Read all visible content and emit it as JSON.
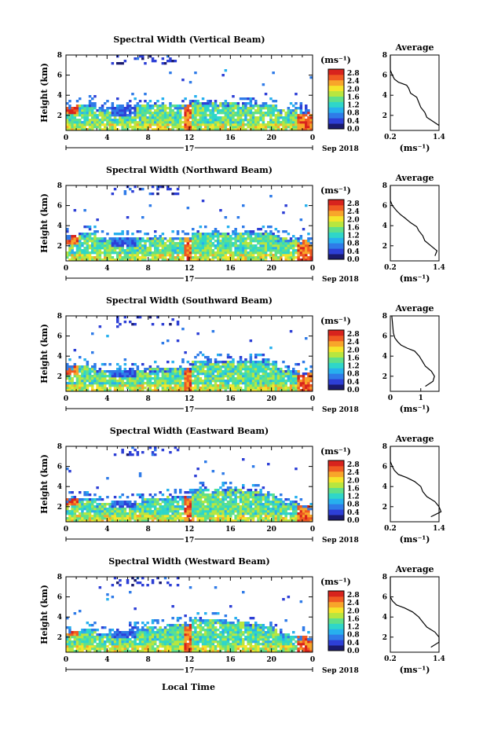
{
  "x_axis_label": "Local Time",
  "date_label": "Sep 2018",
  "day_label": "17",
  "x_ticks": [
    "0",
    "4",
    "8",
    "12",
    "16",
    "20",
    "0"
  ],
  "y_axis_label": "Height (km)",
  "y_ticks": [
    "2",
    "4",
    "6",
    "8"
  ],
  "unit_label": "(ms⁻¹)",
  "average_title": "Average",
  "colorbar_ticks": [
    "0.0",
    "0.4",
    "0.8",
    "1.2",
    "1.6",
    "2.0",
    "2.4",
    "2.8"
  ],
  "colors": {
    "colormap": [
      "#1a1a6e",
      "#2d3fd6",
      "#2f7be8",
      "#27b0ee",
      "#2fd6c9",
      "#5fe08a",
      "#b8e63f",
      "#f5e52a",
      "#f8a62a",
      "#f05a22",
      "#d8231d"
    ],
    "white": "#ffffff"
  },
  "chart_data": [
    {
      "type": "heatmap",
      "title": "Spectral Width (Vertical Beam)",
      "xlabel": "",
      "ylabel": "Height (km)",
      "xlim": [
        0,
        24
      ],
      "ylim": [
        0.5,
        8
      ],
      "colorbar": {
        "label": "(ms⁻¹)",
        "range": [
          0,
          3
        ]
      },
      "profile": {
        "type": "line",
        "title": "Average",
        "xticks": [
          "0.2",
          "1.4"
        ],
        "xlim": [
          0.2,
          1.4
        ],
        "ylim": [
          0.5,
          8
        ],
        "xlabel": "(ms⁻¹)",
        "points": [
          [
            1.4,
            1.0
          ],
          [
            1.25,
            1.4
          ],
          [
            1.1,
            1.8
          ],
          [
            1.05,
            2.3
          ],
          [
            0.95,
            2.8
          ],
          [
            0.9,
            3.3
          ],
          [
            0.85,
            3.8
          ],
          [
            0.7,
            4.2
          ],
          [
            0.65,
            4.7
          ],
          [
            0.6,
            5.0
          ],
          [
            0.4,
            5.3
          ],
          [
            0.3,
            5.6
          ],
          [
            0.25,
            6.0
          ],
          [
            0.2,
            6.5
          ],
          [
            0.2,
            8.0
          ]
        ]
      }
    },
    {
      "type": "heatmap",
      "title": "Spectral Width (Northward Beam)",
      "xlabel": "",
      "ylabel": "Height (km)",
      "xlim": [
        0,
        24
      ],
      "ylim": [
        0.5,
        8
      ],
      "colorbar": {
        "label": "(ms⁻¹)",
        "range": [
          0,
          3
        ]
      },
      "profile": {
        "type": "line",
        "title": "Average",
        "xticks": [
          "0.2",
          "1.4"
        ],
        "xlim": [
          0.2,
          1.4
        ],
        "ylim": [
          0.5,
          8
        ],
        "xlabel": "(ms⁻¹)",
        "points": [
          [
            1.3,
            1.0
          ],
          [
            1.35,
            1.5
          ],
          [
            1.2,
            2.0
          ],
          [
            1.05,
            2.5
          ],
          [
            1.0,
            3.0
          ],
          [
            0.9,
            3.5
          ],
          [
            0.85,
            3.9
          ],
          [
            0.7,
            4.3
          ],
          [
            0.55,
            4.8
          ],
          [
            0.45,
            5.1
          ],
          [
            0.35,
            5.5
          ],
          [
            0.25,
            6.0
          ],
          [
            0.2,
            6.5
          ],
          [
            0.2,
            8.0
          ]
        ]
      }
    },
    {
      "type": "heatmap",
      "title": "Spectral Width (Southward Beam)",
      "xlabel": "",
      "ylabel": "Height (km)",
      "xlim": [
        0,
        24
      ],
      "ylim": [
        0.5,
        8
      ],
      "colorbar": {
        "label": "(ms⁻¹)",
        "range": [
          0,
          3
        ]
      },
      "profile": {
        "type": "line",
        "title": "Average",
        "xticks": [
          "0",
          "1"
        ],
        "xlim": [
          0,
          1.6
        ],
        "ylim": [
          0.5,
          8
        ],
        "xlabel": "(ms⁻¹)",
        "points": [
          [
            1.15,
            1.0
          ],
          [
            1.4,
            1.5
          ],
          [
            1.45,
            2.0
          ],
          [
            1.35,
            2.5
          ],
          [
            1.15,
            3.0
          ],
          [
            1.05,
            3.5
          ],
          [
            0.95,
            4.0
          ],
          [
            0.8,
            4.5
          ],
          [
            0.55,
            4.8
          ],
          [
            0.35,
            5.1
          ],
          [
            0.25,
            5.4
          ],
          [
            0.15,
            5.8
          ],
          [
            0.1,
            6.3
          ],
          [
            0.05,
            8.0
          ]
        ]
      }
    },
    {
      "type": "heatmap",
      "title": "Spectral Width (Eastward Beam)",
      "xlabel": "",
      "ylabel": "Height (km)",
      "xlim": [
        0,
        24
      ],
      "ylim": [
        0.5,
        8
      ],
      "colorbar": {
        "label": "(ms⁻¹)",
        "range": [
          0,
          3
        ]
      },
      "profile": {
        "type": "line",
        "title": "Average",
        "xticks": [
          "0.2",
          "1.4"
        ],
        "xlim": [
          0.2,
          1.4
        ],
        "ylim": [
          0.5,
          8
        ],
        "xlabel": "(ms⁻¹)",
        "points": [
          [
            1.2,
            1.0
          ],
          [
            1.45,
            1.5
          ],
          [
            1.4,
            2.0
          ],
          [
            1.3,
            2.5
          ],
          [
            1.1,
            3.0
          ],
          [
            1.0,
            3.5
          ],
          [
            0.95,
            4.0
          ],
          [
            0.8,
            4.5
          ],
          [
            0.6,
            4.9
          ],
          [
            0.4,
            5.2
          ],
          [
            0.3,
            5.6
          ],
          [
            0.25,
            6.0
          ],
          [
            0.2,
            6.5
          ],
          [
            0.2,
            8.0
          ]
        ]
      }
    },
    {
      "type": "heatmap",
      "title": "Spectral Width (Westward Beam)",
      "xlabel": "Local Time",
      "ylabel": "Height (km)",
      "xlim": [
        0,
        24
      ],
      "ylim": [
        0.5,
        8
      ],
      "colorbar": {
        "label": "(ms⁻¹)",
        "range": [
          0,
          3
        ]
      },
      "profile": {
        "type": "line",
        "title": "Average",
        "xticks": [
          "0.2",
          "1.4"
        ],
        "xlim": [
          0.2,
          1.4
        ],
        "ylim": [
          0.5,
          8
        ],
        "xlabel": "(ms⁻¹)",
        "points": [
          [
            1.2,
            1.0
          ],
          [
            1.4,
            1.5
          ],
          [
            1.4,
            2.0
          ],
          [
            1.3,
            2.5
          ],
          [
            1.1,
            3.0
          ],
          [
            1.0,
            3.5
          ],
          [
            0.9,
            4.0
          ],
          [
            0.75,
            4.5
          ],
          [
            0.55,
            4.9
          ],
          [
            0.35,
            5.2
          ],
          [
            0.25,
            5.6
          ],
          [
            0.2,
            6.0
          ],
          [
            0.2,
            6.5
          ],
          [
            0.2,
            8.0
          ]
        ]
      }
    }
  ]
}
